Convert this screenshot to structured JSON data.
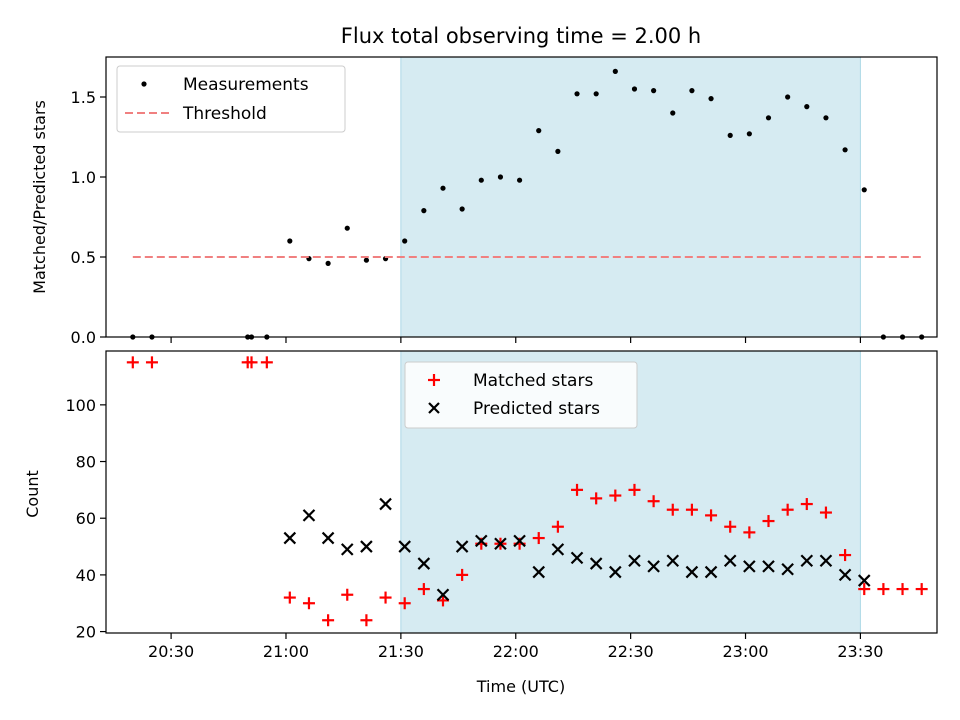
{
  "chart_data": [
    {
      "type": "scatter",
      "title": "Flux total observing time = 2.00 h",
      "xlabel": "",
      "ylabel": "Matched/Predicted stars",
      "ylim": [
        0,
        1.75
      ],
      "yticks": [
        "0.0",
        "0.5",
        "1.0",
        "1.5"
      ],
      "ytick_values": [
        0,
        0.5,
        1.0,
        1.5
      ],
      "legend_position": "top-left",
      "grid": false,
      "shaded_span": {
        "start": "21:30",
        "end": "23:30",
        "color": "#add8e6"
      },
      "series": [
        {
          "name": "Measurements",
          "marker": "dot",
          "color": "#000000",
          "points": [
            [
              "20:20",
              0.0
            ],
            [
              "20:25",
              0.0
            ],
            [
              "20:50",
              0.0
            ],
            [
              "20:51",
              0.0
            ],
            [
              "20:55",
              0.0
            ],
            [
              "21:01",
              0.6
            ],
            [
              "21:06",
              0.49
            ],
            [
              "21:11",
              0.46
            ],
            [
              "21:16",
              0.68
            ],
            [
              "21:21",
              0.48
            ],
            [
              "21:26",
              0.49
            ],
            [
              "21:31",
              0.6
            ],
            [
              "21:36",
              0.79
            ],
            [
              "21:41",
              0.93
            ],
            [
              "21:46",
              0.8
            ],
            [
              "21:51",
              0.98
            ],
            [
              "21:56",
              1.0
            ],
            [
              "22:01",
              0.98
            ],
            [
              "22:06",
              1.29
            ],
            [
              "22:11",
              1.16
            ],
            [
              "22:16",
              1.52
            ],
            [
              "22:21",
              1.52
            ],
            [
              "22:26",
              1.66
            ],
            [
              "22:31",
              1.55
            ],
            [
              "22:36",
              1.54
            ],
            [
              "22:41",
              1.4
            ],
            [
              "22:46",
              1.54
            ],
            [
              "22:51",
              1.49
            ],
            [
              "22:56",
              1.26
            ],
            [
              "23:01",
              1.27
            ],
            [
              "23:06",
              1.37
            ],
            [
              "23:11",
              1.5
            ],
            [
              "23:16",
              1.44
            ],
            [
              "23:21",
              1.37
            ],
            [
              "23:26",
              1.17
            ],
            [
              "23:31",
              0.92
            ],
            [
              "23:36",
              0.0
            ],
            [
              "23:41",
              0.0
            ],
            [
              "23:46",
              0.0
            ]
          ]
        },
        {
          "name": "Threshold",
          "marker": "dashed-line",
          "color": "#f08080",
          "points": [
            [
              "20:20",
              0.5
            ],
            [
              "23:46",
              0.5
            ]
          ]
        }
      ]
    },
    {
      "type": "scatter",
      "title": "",
      "xlabel": "Time (UTC)",
      "ylabel": "Count",
      "ylim": [
        19.5,
        119
      ],
      "yticks": [
        "20",
        "40",
        "60",
        "80",
        "100"
      ],
      "ytick_values": [
        20,
        40,
        60,
        80,
        100
      ],
      "xticks": [
        "20:30",
        "21:00",
        "21:30",
        "22:00",
        "22:30",
        "23:00",
        "23:30"
      ],
      "xlim": [
        "20:13",
        "23:50"
      ],
      "legend_position": "top-center",
      "grid": false,
      "shaded_span": {
        "start": "21:30",
        "end": "23:30",
        "color": "#add8e6"
      },
      "series": [
        {
          "name": "Matched stars",
          "marker": "plus",
          "color": "#ff0000",
          "points": [
            [
              "20:20",
              115
            ],
            [
              "20:25",
              115
            ],
            [
              "20:50",
              115
            ],
            [
              "20:51",
              115
            ],
            [
              "20:55",
              115
            ],
            [
              "21:01",
              32
            ],
            [
              "21:06",
              30
            ],
            [
              "21:11",
              24
            ],
            [
              "21:16",
              33
            ],
            [
              "21:21",
              24
            ],
            [
              "21:26",
              32
            ],
            [
              "21:31",
              30
            ],
            [
              "21:36",
              35
            ],
            [
              "21:41",
              31
            ],
            [
              "21:46",
              40
            ],
            [
              "21:51",
              51
            ],
            [
              "21:56",
              51
            ],
            [
              "22:01",
              51
            ],
            [
              "22:06",
              53
            ],
            [
              "22:11",
              57
            ],
            [
              "22:16",
              70
            ],
            [
              "22:21",
              67
            ],
            [
              "22:26",
              68
            ],
            [
              "22:31",
              70
            ],
            [
              "22:36",
              66
            ],
            [
              "22:41",
              63
            ],
            [
              "22:46",
              63
            ],
            [
              "22:51",
              61
            ],
            [
              "22:56",
              57
            ],
            [
              "23:01",
              55
            ],
            [
              "23:06",
              59
            ],
            [
              "23:11",
              63
            ],
            [
              "23:16",
              65
            ],
            [
              "23:21",
              62
            ],
            [
              "23:26",
              47
            ],
            [
              "23:31",
              35
            ],
            [
              "23:36",
              35
            ],
            [
              "23:41",
              35
            ],
            [
              "23:46",
              35
            ]
          ]
        },
        {
          "name": "Predicted stars",
          "marker": "x",
          "color": "#000000",
          "points": [
            [
              "21:01",
              53
            ],
            [
              "21:06",
              61
            ],
            [
              "21:11",
              53
            ],
            [
              "21:16",
              49
            ],
            [
              "21:21",
              50
            ],
            [
              "21:26",
              65
            ],
            [
              "21:31",
              50
            ],
            [
              "21:36",
              44
            ],
            [
              "21:41",
              33
            ],
            [
              "21:46",
              50
            ],
            [
              "21:51",
              52
            ],
            [
              "21:56",
              51
            ],
            [
              "22:01",
              52
            ],
            [
              "22:06",
              41
            ],
            [
              "22:11",
              49
            ],
            [
              "22:16",
              46
            ],
            [
              "22:21",
              44
            ],
            [
              "22:26",
              41
            ],
            [
              "22:31",
              45
            ],
            [
              "22:36",
              43
            ],
            [
              "22:41",
              45
            ],
            [
              "22:46",
              41
            ],
            [
              "22:51",
              41
            ],
            [
              "22:56",
              45
            ],
            [
              "23:01",
              43
            ],
            [
              "23:06",
              43
            ],
            [
              "23:11",
              42
            ],
            [
              "23:16",
              45
            ],
            [
              "23:21",
              45
            ],
            [
              "23:26",
              40
            ],
            [
              "23:31",
              38
            ]
          ]
        }
      ]
    }
  ]
}
